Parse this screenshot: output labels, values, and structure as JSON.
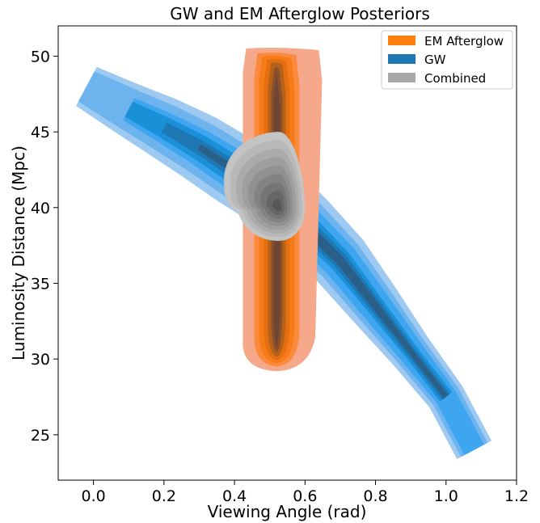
{
  "chart_data": {
    "type": "contour",
    "title": "GW and EM Afterglow Posteriors",
    "xlabel": "Viewing Angle (rad)",
    "ylabel": "Luminosity Distance (Mpc)",
    "xlim": [
      -0.1,
      1.2
    ],
    "ylim": [
      22,
      52
    ],
    "xticks": [
      0.0,
      0.2,
      0.4,
      0.6,
      0.8,
      1.0,
      1.2
    ],
    "xtick_labels": [
      "0.0",
      "0.2",
      "0.4",
      "0.6",
      "0.8",
      "1.0",
      "1.2"
    ],
    "yticks": [
      25,
      30,
      35,
      40,
      45,
      50
    ],
    "ytick_labels": [
      "25",
      "30",
      "35",
      "40",
      "45",
      "50"
    ],
    "grid": false,
    "legend_position": "top-right",
    "series": [
      {
        "name": "GW",
        "color": "#1f77b4",
        "fill_colors": [
          "#9ec9f0",
          "#6db3ee",
          "#3ea6f0",
          "#1a90d8",
          "#1f77b4",
          "#2a5f88"
        ],
        "ridge": [
          [
            -0.02,
            48.0
          ],
          [
            0.1,
            46.5
          ],
          [
            0.2,
            45.3
          ],
          [
            0.3,
            44.0
          ],
          [
            0.4,
            42.5
          ],
          [
            0.5,
            41.0
          ],
          [
            0.6,
            38.8
          ],
          [
            0.7,
            36.5
          ],
          [
            0.8,
            33.5
          ],
          [
            0.9,
            30.5
          ],
          [
            1.0,
            27.5
          ],
          [
            1.08,
            24.0
          ]
        ],
        "widths": [
          [
            0.5,
            0.0
          ],
          [
            0.42,
            0.05
          ],
          [
            0.34,
            0.1
          ],
          [
            0.26,
            0.15
          ],
          [
            0.18,
            0.2
          ],
          [
            0.12,
            0.25
          ]
        ],
        "levels": 6
      },
      {
        "name": "EM Afterglow",
        "color": "#ff7f0e",
        "fill_colors": [
          "#f5a88a",
          "#fb8a3c",
          "#f57c18",
          "#e56f10",
          "#b4611c",
          "#8a4f2b",
          "#6e4532"
        ],
        "center_x": 0.52,
        "y_range": [
          29.3,
          50.5
        ],
        "levels": 7
      },
      {
        "name": "Combined",
        "color": "#a9a9a9",
        "fill_colors": [
          "#c4c4c4",
          "#b8b8b8",
          "#ababab",
          "#9e9e9e",
          "#919191",
          "#838383",
          "#757575",
          "#666666",
          "#575757"
        ],
        "center": [
          0.525,
          40.0
        ],
        "x_range": [
          0.37,
          0.6
        ],
        "y_range": [
          37.8,
          45.0
        ],
        "levels": 9
      }
    ]
  },
  "legend": {
    "items": [
      {
        "label": "EM Afterglow",
        "color": "#ff7f0e"
      },
      {
        "label": "GW",
        "color": "#1f77b4"
      },
      {
        "label": "Combined",
        "color": "#a9a9a9"
      }
    ]
  }
}
